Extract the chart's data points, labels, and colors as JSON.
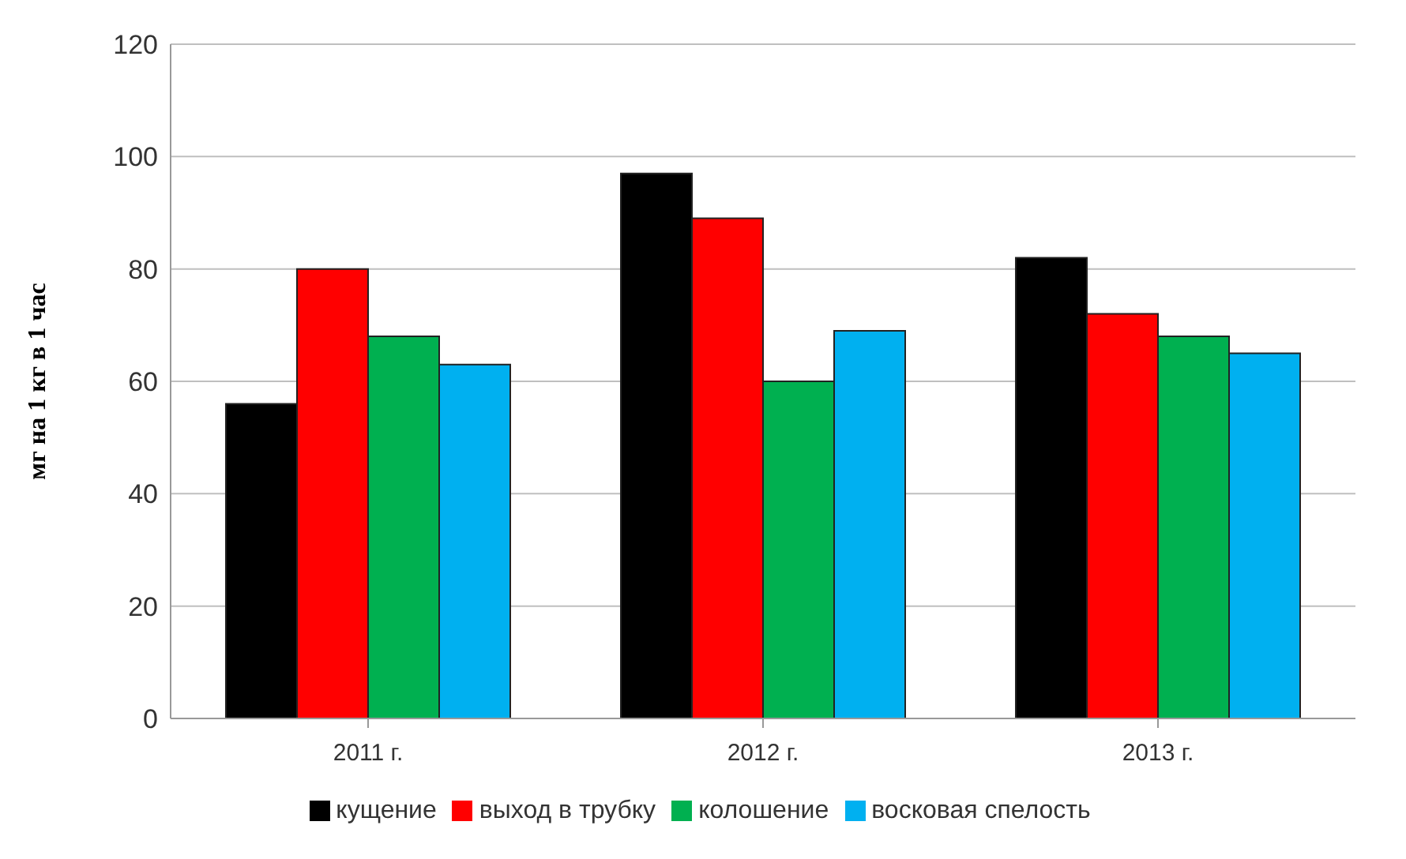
{
  "chart_data": {
    "type": "bar",
    "ylabel": "мг на 1 кг в 1 час",
    "categories": [
      "2011 г.",
      "2012 г.",
      "2013 г."
    ],
    "series": [
      {
        "name": "кущение",
        "color": "#000000",
        "values": [
          56,
          97,
          82
        ]
      },
      {
        "name": "выход в трубку",
        "color": "#ff0000",
        "values": [
          80,
          89,
          72
        ]
      },
      {
        "name": "колошение",
        "color": "#00b050",
        "values": [
          68,
          60,
          68
        ]
      },
      {
        "name": "восковая спелость",
        "color": "#00b0f0",
        "values": [
          63,
          69,
          65
        ]
      }
    ],
    "ylim": [
      0,
      120
    ],
    "yticks": [
      0,
      20,
      40,
      60,
      80,
      100,
      120
    ],
    "grid": "y",
    "legend": "bottom"
  }
}
